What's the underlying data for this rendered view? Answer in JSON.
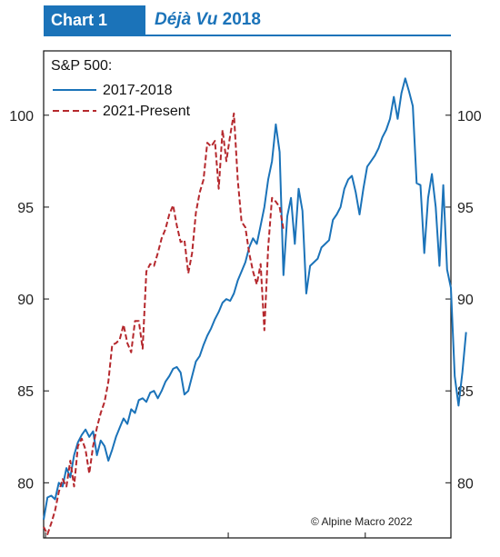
{
  "header": {
    "badge": "Chart 1",
    "title_italic": "Déjà Vu",
    "title_rest": " 2018"
  },
  "legend": {
    "title": "S&P 500:",
    "items": [
      {
        "label": "2017-2018",
        "color": "#1b73b9",
        "dashed": false
      },
      {
        "label": "2021-Present",
        "color": "#b5282d",
        "dashed": true
      }
    ]
  },
  "copyright": "© Alpine Macro 2022",
  "chart_data": {
    "type": "line",
    "yticks": [
      80,
      85,
      90,
      95,
      100
    ],
    "ylim": [
      77,
      103.5
    ],
    "xlim": [
      0,
      107
    ],
    "grid": false,
    "legend_position": "top-left",
    "series": [
      {
        "name": "2017-2018",
        "color": "#1b73b9",
        "dashed": false,
        "y": [
          78.0,
          79.2,
          79.3,
          79.1,
          80.0,
          79.8,
          80.8,
          80.3,
          81.5,
          82.2,
          82.6,
          82.9,
          82.5,
          82.8,
          81.5,
          82.3,
          82.0,
          81.2,
          81.8,
          82.5,
          83.0,
          83.5,
          83.2,
          84.0,
          83.8,
          84.5,
          84.6,
          84.4,
          84.9,
          85.0,
          84.6,
          85.0,
          85.5,
          85.8,
          86.2,
          86.3,
          86.0,
          84.8,
          85.0,
          85.8,
          86.6,
          86.9,
          87.5,
          88.0,
          88.4,
          88.9,
          89.3,
          89.8,
          90.0,
          89.9,
          90.3,
          91.0,
          91.5,
          92.0,
          92.8,
          93.3,
          93.0,
          94.0,
          95.0,
          96.5,
          97.5,
          99.5,
          98.0,
          91.3,
          94.5,
          95.5,
          93.0,
          96.0,
          94.8,
          90.3,
          91.8,
          92.0,
          92.2,
          92.8,
          93.0,
          93.2,
          94.3,
          94.6,
          95.0,
          96.0,
          96.5,
          96.7,
          95.8,
          94.6,
          96.0,
          97.2,
          97.5,
          97.8,
          98.2,
          98.8,
          99.2,
          99.8,
          101.0,
          99.8,
          101.2,
          102.0,
          101.3,
          100.5,
          96.3,
          96.2,
          92.5,
          95.5,
          96.8,
          95.0,
          91.8,
          96.2,
          91.6,
          90.6,
          85.8,
          84.2,
          86.0,
          88.2
        ]
      },
      {
        "name": "2021-Present",
        "color": "#b5282d",
        "dashed": true,
        "y": [
          77.6,
          77.2,
          77.8,
          78.5,
          79.5,
          80.2,
          79.8,
          81.2,
          79.8,
          82.0,
          82.4,
          81.8,
          80.5,
          82.0,
          83.0,
          83.8,
          84.4,
          85.5,
          87.5,
          87.6,
          87.8,
          88.6,
          87.6,
          87.1,
          88.8,
          88.8,
          87.3,
          91.5,
          91.9,
          91.8,
          92.5,
          93.3,
          93.8,
          94.6,
          95.1,
          94.0,
          93.1,
          93.2,
          91.4,
          92.5,
          94.7,
          95.8,
          96.5,
          98.5,
          98.3,
          98.6,
          96.0,
          99.2,
          97.5,
          98.9,
          100.1,
          96.5,
          94.2,
          93.9,
          92.5,
          91.5,
          90.8,
          91.9,
          88.3,
          92.8,
          95.5,
          95.3,
          95.0,
          93.8
        ]
      }
    ]
  }
}
